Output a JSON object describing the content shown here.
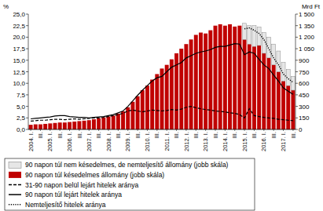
{
  "chart_data": {
    "type": "bar",
    "y_label": "%",
    "y2_label": "Mrd Ft",
    "categories": [
      "2004. I.",
      null,
      "III.",
      null,
      "2005. I.",
      null,
      "III.",
      null,
      "2006. I.",
      null,
      "III.",
      null,
      "2007. I.",
      null,
      "III.",
      null,
      "2008. I.",
      null,
      "III.",
      null,
      "2009. I.",
      null,
      "III.",
      null,
      "2010. I.",
      null,
      "III.",
      null,
      "2011. I.",
      null,
      "III.",
      null,
      "2012. I.",
      null,
      "III.",
      null,
      "2013. I.",
      null,
      "III.",
      null,
      "2014. I.",
      null,
      "III.",
      null,
      "2015. I.",
      null,
      "III.",
      null,
      "2016. I.",
      null,
      "III.",
      null,
      "2017. I.",
      null,
      "III."
    ],
    "ylim": [
      0,
      25
    ],
    "yticks": [
      {
        "value": 0,
        "label": "0,0"
      },
      {
        "value": 2.5,
        "label": "2,5"
      },
      {
        "value": 5,
        "label": "5,0"
      },
      {
        "value": 7.5,
        "label": "7,5"
      },
      {
        "value": 10,
        "label": "10,0"
      },
      {
        "value": 12.5,
        "label": "12,5"
      },
      {
        "value": 15,
        "label": "15,0"
      },
      {
        "value": 17.5,
        "label": "17,5"
      },
      {
        "value": 20,
        "label": "20,0"
      },
      {
        "value": 22.5,
        "label": "22,5"
      },
      {
        "value": 25,
        "label": "25,0"
      }
    ],
    "y2lim": [
      0,
      1500
    ],
    "y2ticks": [
      0,
      150,
      300,
      450,
      600,
      750,
      900,
      {
        "value": 1050,
        "label": "1 050"
      },
      {
        "value": 1200,
        "label": "1 200"
      },
      {
        "value": 1350,
        "label": "1 350"
      },
      {
        "value": 1500,
        "label": "1 500"
      }
    ],
    "stacked": true,
    "grid": false,
    "legend": "bottom",
    "series": [
      {
        "name": "90 napon túl nem késedelmes, de nemteljesítő állomány (jobb skála)",
        "type": "bar",
        "axis": "y2",
        "color": "#e6e6e6",
        "values": [
          null,
          null,
          null,
          null,
          null,
          null,
          null,
          null,
          null,
          null,
          null,
          null,
          null,
          null,
          null,
          null,
          null,
          null,
          null,
          null,
          null,
          null,
          null,
          null,
          null,
          null,
          null,
          null,
          null,
          null,
          null,
          null,
          null,
          null,
          null,
          null,
          null,
          null,
          null,
          null,
          null,
          null,
          null,
          null,
          210,
          240,
          270,
          240,
          270,
          270,
          270,
          270,
          240,
          210,
          180
        ]
      },
      {
        "name": "90 napon túl késedelmes állomány (jobb skála)",
        "type": "bar",
        "axis": "y2",
        "color": "#c00000",
        "values": [
          60,
          66,
          66,
          72,
          78,
          84,
          90,
          90,
          96,
          102,
          108,
          114,
          120,
          132,
          144,
          156,
          168,
          180,
          204,
          234,
          288,
          360,
          432,
          510,
          570,
          648,
          720,
          792,
          840,
          912,
          990,
          1050,
          1110,
          1170,
          1230,
          1260,
          1248,
          1290,
          1350,
          1368,
          1350,
          1368,
          1338,
          1350,
          1170,
          1110,
          1080,
          1092,
          990,
          930,
          840,
          750,
          630,
          570,
          510
        ]
      },
      {
        "name": "31-90 napon belül lejárt hitelek aránya",
        "type": "line",
        "color": "#000000",
        "line_style": "dashed",
        "values": [
          1.8,
          1.9,
          2.0,
          2.0,
          2.1,
          2.2,
          2.2,
          2.1,
          2.2,
          2.3,
          2.2,
          2.3,
          2.4,
          2.5,
          2.5,
          2.6,
          2.8,
          3.0,
          3.2,
          3.5,
          4.0,
          4.2,
          4.0,
          3.8,
          4.0,
          4.2,
          4.1,
          4.0,
          4.1,
          4.3,
          4.2,
          4.4,
          4.8,
          5.0,
          4.7,
          4.5,
          4.3,
          4.2,
          4.0,
          3.9,
          3.8,
          3.6,
          3.5,
          3.2,
          2.5,
          4.5,
          3.0,
          2.8,
          2.6,
          2.5,
          2.4,
          2.2,
          2.1,
          2.0,
          1.9
        ]
      },
      {
        "name": "90 napon túl lejárt hitelek aránya",
        "type": "line",
        "color": "#000000",
        "line_style": "solid",
        "values": [
          2.3,
          2.4,
          2.5,
          2.6,
          2.7,
          2.9,
          3.0,
          3.0,
          2.8,
          2.7,
          2.6,
          2.6,
          2.5,
          2.6,
          2.7,
          2.8,
          3.0,
          3.2,
          3.6,
          4.0,
          5.0,
          6.2,
          7.4,
          8.5,
          9.5,
          10.5,
          11.2,
          11.5,
          12.5,
          13.5,
          14.0,
          14.5,
          15.5,
          16.0,
          16.5,
          16.8,
          17.0,
          17.3,
          17.8,
          18.0,
          18.0,
          18.3,
          18.6,
          18.5,
          16.2,
          16.8,
          16.5,
          15.2,
          14.0,
          13.2,
          11.8,
          10.5,
          9.0,
          8.3,
          7.6
        ]
      },
      {
        "name": "Nemteljesítő hitelek aránya",
        "type": "line",
        "color": "#000000",
        "line_style": "dotted",
        "values": [
          null,
          null,
          null,
          null,
          null,
          null,
          null,
          null,
          null,
          null,
          null,
          null,
          null,
          null,
          null,
          null,
          null,
          null,
          null,
          null,
          null,
          null,
          null,
          null,
          null,
          null,
          null,
          null,
          null,
          null,
          null,
          null,
          null,
          null,
          null,
          null,
          null,
          null,
          null,
          null,
          null,
          null,
          null,
          null,
          21.8,
          22.0,
          21.5,
          20.8,
          19.5,
          17.5,
          15.5,
          14.0,
          12.0,
          11.0,
          10.2
        ]
      }
    ]
  }
}
